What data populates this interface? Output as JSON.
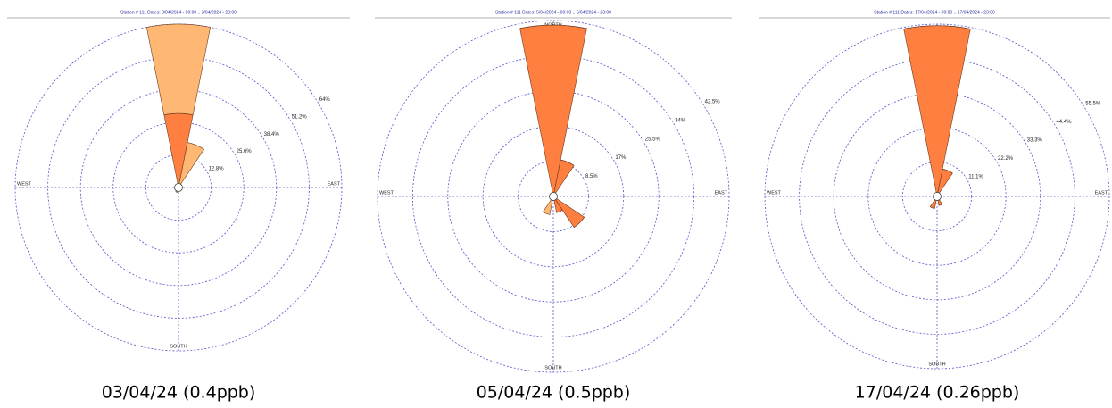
{
  "chart_data": [
    {
      "type": "windrose",
      "title": "Station # 111  Dates: 3/04/2024 - 00:00 .. 3/04/2024 - 23:00",
      "caption": "03/04/24 (0.4ppb)",
      "direction_labels": [
        "NORTH",
        "EAST",
        "SOUTH",
        "WEST"
      ],
      "rlim": [
        0,
        64
      ],
      "rticks": [
        {
          "value": 12.8,
          "label": "12.8%"
        },
        {
          "value": 25.6,
          "label": "25.6%"
        },
        {
          "value": 38.4,
          "label": "38.4%"
        },
        {
          "value": 51.2,
          "label": "51.2%"
        },
        {
          "value": 64,
          "label": "64%"
        }
      ],
      "series": [
        {
          "color": "#ff7f40",
          "values": [
            29,
            0,
            0,
            0,
            0,
            0,
            0,
            0,
            0,
            0,
            0,
            0,
            0,
            0,
            0,
            0
          ]
        },
        {
          "color": "#ffb874",
          "values": [
            35,
            18,
            0,
            0,
            0,
            0,
            0,
            0,
            0,
            2,
            0,
            0,
            0,
            0,
            0,
            0
          ]
        }
      ]
    },
    {
      "type": "windrose",
      "title": "Station # 111  Dates: 5/04/2024 - 00:00 .. 5/04/2024 - 23:00",
      "caption": "05/04/24 (0.5ppb)",
      "direction_labels": [
        "NORTH",
        "EAST",
        "SOUTH",
        "WEST"
      ],
      "rlim": [
        0,
        42.5
      ],
      "rticks": [
        {
          "value": 8.5,
          "label": "8.5%"
        },
        {
          "value": 17,
          "label": "17%"
        },
        {
          "value": 25.5,
          "label": "25.5%"
        },
        {
          "value": 34,
          "label": "34%"
        },
        {
          "value": 42.5,
          "label": "42.5%"
        }
      ],
      "series": [
        {
          "color": "#ff7f40",
          "values": [
            41.4,
            9,
            0,
            0,
            0,
            0,
            9,
            4,
            0,
            0,
            0,
            0,
            0,
            0,
            0,
            0
          ]
        },
        {
          "color": "#ffb874",
          "values": [
            0,
            0,
            0,
            0,
            0,
            0,
            0,
            0,
            0,
            4.5,
            0,
            0,
            0,
            0,
            0,
            0
          ]
        }
      ]
    },
    {
      "type": "windrose",
      "title": "Station # 111  Dates: 17/04/2024 - 00:00 .. 17/04/2024 - 23:00",
      "caption": "17/04/24 (0.26ppb)",
      "direction_labels": [
        "NORTH",
        "EAST",
        "SOUTH",
        "WEST"
      ],
      "rlim": [
        0,
        55.5
      ],
      "rticks": [
        {
          "value": 11.1,
          "label": "11.1%"
        },
        {
          "value": 22.2,
          "label": "22.2%"
        },
        {
          "value": 33.3,
          "label": "33.3%"
        },
        {
          "value": 44.4,
          "label": "44.4%"
        },
        {
          "value": 55.5,
          "label": "55.5%"
        }
      ],
      "series": [
        {
          "color": "#ff7f40",
          "values": [
            55,
            9,
            0,
            0,
            0,
            0,
            0,
            3,
            0,
            4,
            0,
            0,
            0,
            0,
            0,
            0
          ]
        },
        {
          "color": "#ffb874",
          "values": [
            0,
            0,
            0,
            0,
            0,
            0,
            0,
            0,
            0,
            0,
            0,
            0,
            0,
            0,
            0,
            0
          ]
        }
      ]
    }
  ]
}
